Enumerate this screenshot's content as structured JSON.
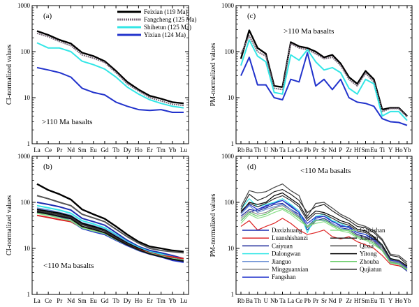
{
  "chart_data": [
    {
      "type": "line",
      "panel_label": "(a)",
      "note": ">110 Ma  basalts",
      "ylabel": "CI-normalized values",
      "yscale": "log",
      "ylim": [
        1,
        1000
      ],
      "yticks": [
        "1",
        "10",
        "100",
        "1000"
      ],
      "categories": [
        "La",
        "Ce",
        "Pr",
        "Nd",
        "Sm",
        "Eu",
        "Gd",
        "Tb",
        "Dy",
        "Ho",
        "Er",
        "Tm",
        "Yb",
        "Lu"
      ],
      "legend_position": "top-right",
      "series": [
        {
          "name": "Feixian (119 Ma)",
          "color": "#000000",
          "values": [
            280,
            230,
            180,
            150,
            95,
            80,
            62,
            38,
            22,
            15,
            11,
            9.5,
            8,
            7.5
          ]
        },
        {
          "name": "Fangcheng (125 Ma)",
          "color": "#7a6a7a",
          "values": [
            250,
            210,
            165,
            135,
            85,
            72,
            58,
            35,
            20,
            14,
            10,
            8.5,
            7.2,
            6.8
          ]
        },
        {
          "name": "Shihetun (125 Ma)",
          "color": "#33e6e6",
          "values": [
            155,
            120,
            120,
            100,
            62,
            52,
            42,
            28,
            17,
            12,
            9,
            7.5,
            6.5,
            6
          ]
        },
        {
          "name": "Yixian (124 Ma)",
          "color": "#2233cc",
          "values": [
            45,
            40,
            35,
            28,
            16,
            13,
            11.5,
            8,
            6.5,
            5.5,
            5.3,
            5.5,
            4.8,
            4.8
          ]
        }
      ]
    },
    {
      "type": "line",
      "panel_label": "(b)",
      "note": "<110 Ma basalts",
      "ylabel": "CI-normalized values",
      "yscale": "log",
      "ylim": [
        1,
        1000
      ],
      "yticks": [
        "1",
        "10",
        "100",
        "1000"
      ],
      "categories": [
        "La",
        "Ce",
        "Pr",
        "Nd",
        "Sm",
        "Eu",
        "Gd",
        "Tb",
        "Dy",
        "Ho",
        "Er",
        "Tm",
        "Yb",
        "Lu"
      ],
      "series": [
        {
          "color": "#000000",
          "values": [
            250,
            185,
            150,
            115,
            70,
            55,
            44,
            30,
            20,
            14,
            11,
            10,
            9,
            8.5
          ]
        },
        {
          "color": "#555555",
          "values": [
            140,
            120,
            100,
            85,
            55,
            46,
            38,
            26,
            18,
            13,
            10,
            9,
            8.5,
            8
          ]
        },
        {
          "color": "#1c2bb0",
          "values": [
            100,
            90,
            80,
            68,
            45,
            38,
            32,
            22,
            15,
            11,
            9,
            8,
            7,
            6
          ]
        },
        {
          "color": "#33e6e6",
          "values": [
            85,
            76,
            68,
            58,
            40,
            34,
            28,
            20,
            14,
            10.5,
            8.5,
            7.5,
            6.5,
            6
          ]
        },
        {
          "color": "#6a8fd4",
          "values": [
            75,
            68,
            60,
            52,
            36,
            31,
            26,
            19,
            13.5,
            10,
            8.2,
            7,
            6.2,
            5.5
          ]
        },
        {
          "color": "#000000",
          "values": [
            70,
            64,
            58,
            50,
            35,
            30,
            25,
            18,
            13,
            10,
            8,
            7,
            6,
            5.5
          ]
        },
        {
          "color": "#333333",
          "values": [
            65,
            60,
            54,
            47,
            33,
            28,
            24,
            17,
            12.5,
            9.5,
            7.8,
            6.8,
            5.8,
            5.2
          ]
        },
        {
          "color": "#dd2222",
          "values": [
            52,
            47,
            42,
            38,
            28,
            25,
            22,
            16,
            12,
            9.5,
            8,
            7,
            6.5,
            6
          ]
        },
        {
          "color": "#2233cc",
          "values": [
            60,
            54,
            48,
            40,
            27,
            23,
            20,
            15,
            11.5,
            9,
            7.5,
            6.5,
            5.5,
            5
          ]
        },
        {
          "color": "#88dd88",
          "values": [
            58,
            52,
            46,
            40,
            28,
            24,
            21,
            15.5,
            12,
            9.2,
            7.8,
            6.8,
            6,
            5.5
          ]
        },
        {
          "color": "#111111",
          "values": [
            62,
            56,
            50,
            44,
            30,
            26,
            22,
            16,
            12,
            9.3,
            7.6,
            6.6,
            5.8,
            5.3
          ]
        }
      ]
    },
    {
      "type": "line",
      "panel_label": "(c)",
      "note": ">110 Ma basalts",
      "ylabel": "PM-normalized values",
      "yscale": "log",
      "ylim": [
        1,
        1000
      ],
      "yticks": [
        "1",
        "10",
        "100",
        "1000"
      ],
      "categories": [
        "Rb",
        "Ba",
        "Th",
        "U",
        "Nb",
        "Ta",
        "La",
        "Ce",
        "Pb",
        "Pr",
        "Sr",
        "Nd",
        "P",
        "Zr",
        "Hf",
        "Sm",
        "Eu",
        "Ti",
        "Y",
        "Ho",
        "Yb"
      ],
      "series": [
        {
          "name": "Feixian (119 Ma)",
          "color": "#000000",
          "values": [
            70,
            290,
            120,
            90,
            18,
            17,
            160,
            130,
            120,
            100,
            75,
            85,
            55,
            28,
            20,
            38,
            25,
            5.5,
            6,
            6,
            4
          ]
        },
        {
          "name": "Fangcheng (125 Ma)",
          "color": "#7a6a7a",
          "values": [
            90,
            220,
            100,
            80,
            16,
            15,
            150,
            120,
            110,
            90,
            70,
            75,
            50,
            25,
            18,
            34,
            22,
            5,
            5.8,
            5.8,
            3.8
          ]
        },
        {
          "name": "Shihetun (125 Ma)",
          "color": "#33e6e6",
          "values": [
            50,
            180,
            80,
            60,
            13,
            12,
            85,
            65,
            110,
            60,
            40,
            45,
            35,
            16,
            12,
            25,
            20,
            4,
            5,
            5,
            3.2
          ]
        },
        {
          "name": "Yixian (124 Ma)",
          "color": "#2233cc",
          "values": [
            30,
            75,
            19,
            19,
            10,
            9,
            25,
            22,
            95,
            18,
            25,
            15,
            25,
            10,
            8,
            7.5,
            6.5,
            3.5,
            3,
            2.9,
            2.5
          ]
        }
      ]
    },
    {
      "type": "line",
      "panel_label": "(d)",
      "note": "<110 Ma basalts",
      "ylabel": "PM-normalized values",
      "yscale": "log",
      "ylim": [
        1,
        1000
      ],
      "yticks": [
        "1",
        "10",
        "100",
        "1000"
      ],
      "categories": [
        "Rb",
        "Ba",
        "Th",
        "U",
        "Nb",
        "Ta",
        "La",
        "Ce",
        "Pb",
        "Pr",
        "Sr",
        "Nd",
        "P",
        "Zr",
        "Hf",
        "Sm",
        "Eu",
        "Ti",
        "Y",
        "Ho",
        "Yb"
      ],
      "legend_position": "bottom-left",
      "series": [
        {
          "name": "Daxizhuang",
          "color": "#1c2bb0",
          "values": [
            40,
            60,
            70,
            80,
            100,
            110,
            80,
            60,
            30,
            45,
            50,
            40,
            30,
            30,
            22,
            20,
            15,
            10,
            5,
            5,
            3.5
          ]
        },
        {
          "name": "Luanshishanzi",
          "color": "#dd2222",
          "values": [
            30,
            40,
            25,
            30,
            35,
            45,
            35,
            25,
            20,
            22,
            25,
            18,
            16,
            18,
            14,
            12,
            10,
            7,
            4.5,
            4.2,
            3.5
          ]
        },
        {
          "name": "Caiyuan",
          "color": "#1a2699",
          "values": [
            50,
            70,
            65,
            75,
            90,
            95,
            70,
            55,
            25,
            40,
            45,
            35,
            28,
            26,
            20,
            18,
            14,
            9,
            4.8,
            4.5,
            3.2
          ]
        },
        {
          "name": "Dalongwan",
          "color": "#33e6e6",
          "values": [
            70,
            120,
            80,
            90,
            100,
            120,
            90,
            65,
            22,
            50,
            55,
            40,
            35,
            28,
            22,
            20,
            16,
            12,
            6,
            5.5,
            4
          ]
        },
        {
          "name": "Jianguo",
          "color": "#6a8fd4",
          "values": [
            55,
            85,
            60,
            70,
            80,
            90,
            70,
            50,
            30,
            42,
            40,
            35,
            28,
            24,
            18,
            16,
            13,
            10,
            5,
            4.8,
            3.8
          ]
        },
        {
          "name": "Mingguanxian",
          "color": "#888888",
          "values": [
            45,
            65,
            55,
            60,
            75,
            85,
            65,
            48,
            28,
            40,
            42,
            33,
            26,
            24,
            19,
            17,
            14,
            10,
            5.2,
            5,
            3.6
          ]
        },
        {
          "name": "Fangshan",
          "color": "#2233cc",
          "values": [
            60,
            90,
            70,
            85,
            95,
            110,
            85,
            60,
            35,
            48,
            50,
            38,
            32,
            28,
            22,
            20,
            16,
            11,
            5.5,
            5.2,
            3.8
          ]
        },
        {
          "name": "Guizishan",
          "color": "#88dd88",
          "values": [
            35,
            55,
            45,
            50,
            60,
            70,
            55,
            40,
            30,
            35,
            38,
            30,
            24,
            22,
            17,
            15,
            12,
            9,
            4.8,
            4.5,
            3.4
          ]
        },
        {
          "name": "Jiashan",
          "color": "#222222",
          "values": [
            70,
            150,
            110,
            130,
            170,
            190,
            150,
            110,
            60,
            80,
            90,
            65,
            50,
            40,
            30,
            28,
            22,
            15,
            7,
            6.5,
            4.5
          ]
        },
        {
          "name": "Qixia",
          "color": "#444444",
          "values": [
            80,
            180,
            160,
            170,
            210,
            250,
            180,
            140,
            50,
            95,
            100,
            75,
            55,
            45,
            34,
            30,
            24,
            16,
            7.5,
            7,
            5
          ]
        },
        {
          "name": "Yitong",
          "color": "#000000",
          "values": [
            60,
            100,
            90,
            100,
            140,
            160,
            120,
            90,
            45,
            65,
            60,
            50,
            40,
            35,
            26,
            24,
            18,
            12,
            6,
            5.5,
            4.2
          ]
        },
        {
          "name": "Zhouba",
          "color": "#66cc66",
          "values": [
            40,
            60,
            50,
            55,
            70,
            75,
            60,
            45,
            30,
            40,
            42,
            32,
            26,
            24,
            18,
            16,
            13,
            9,
            5,
            4.6,
            3.5
          ]
        },
        {
          "name": "Qujiatun",
          "color": "#333333",
          "values": [
            65,
            95,
            80,
            95,
            120,
            140,
            110,
            80,
            40,
            58,
            55,
            45,
            36,
            32,
            24,
            22,
            17,
            11,
            5.8,
            5.4,
            4
          ]
        }
      ]
    }
  ]
}
